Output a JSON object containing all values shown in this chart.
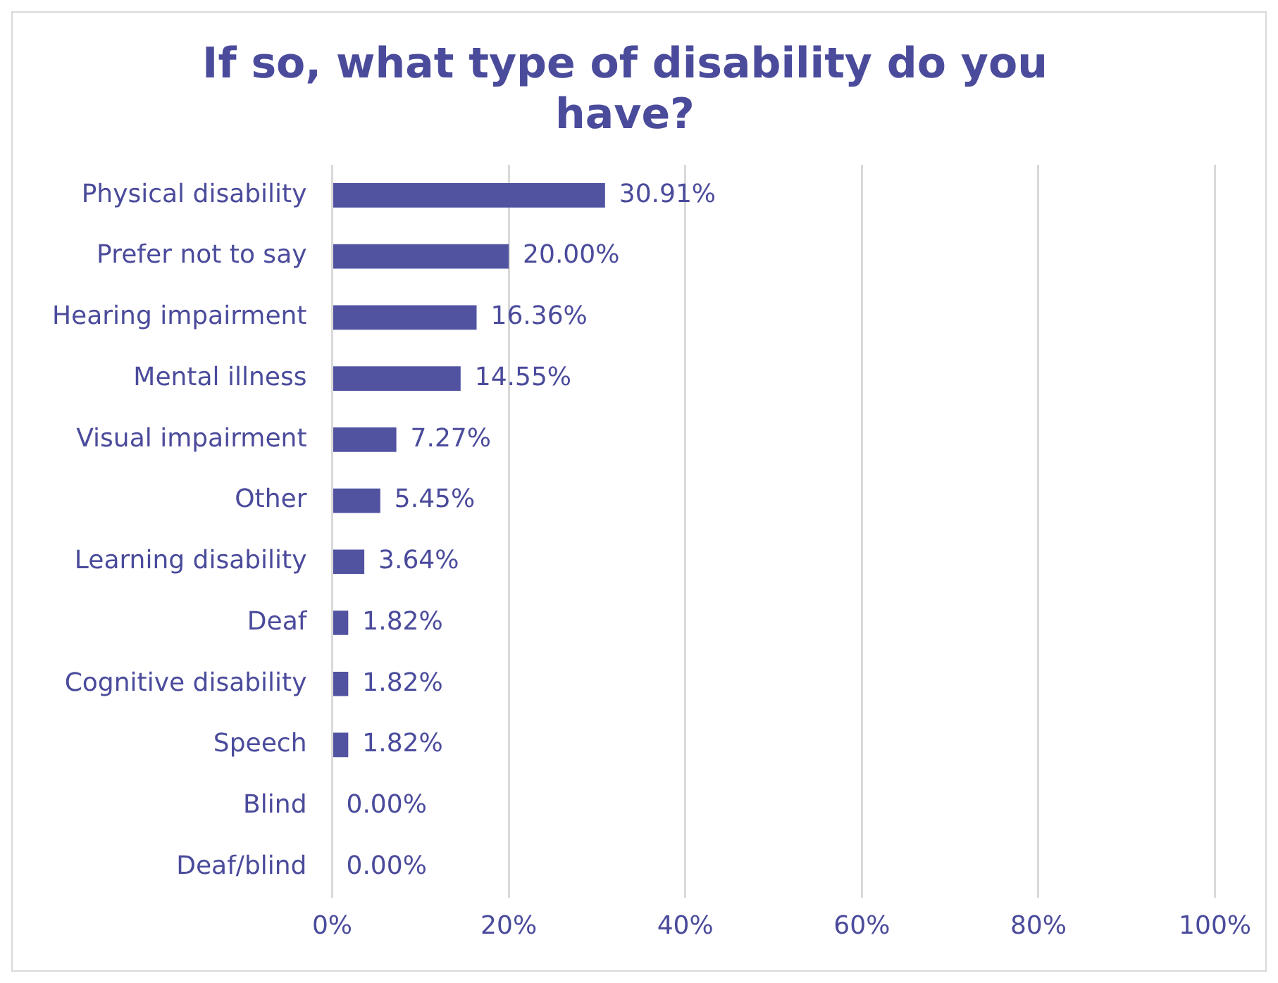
{
  "chart_data": {
    "type": "bar",
    "orientation": "horizontal",
    "title": "If so, what type of disability do you have?",
    "categories": [
      "Physical disability",
      "Prefer not to say",
      "Hearing impairment",
      "Mental illness",
      "Visual impairment",
      "Other",
      "Learning disability",
      "Deaf",
      "Cognitive disability",
      "Speech",
      "Blind",
      "Deaf/blind"
    ],
    "values": [
      30.91,
      20.0,
      16.36,
      14.55,
      7.27,
      5.45,
      3.64,
      1.82,
      1.82,
      1.82,
      0.0,
      0.0
    ],
    "value_labels": [
      "30.91%",
      "20.00%",
      "16.36%",
      "14.55%",
      "7.27%",
      "5.45%",
      "3.64%",
      "1.82%",
      "1.82%",
      "1.82%",
      "0.00%",
      "0.00%"
    ],
    "color": "#5153a1",
    "xlim": [
      0,
      100
    ],
    "xticks": [
      {
        "value": 0,
        "label": "0%"
      },
      {
        "value": 20,
        "label": "20%"
      },
      {
        "value": 40,
        "label": "40%"
      },
      {
        "value": 60,
        "label": "60%"
      },
      {
        "value": 80,
        "label": "80%"
      },
      {
        "value": 100,
        "label": "100%"
      }
    ],
    "grid": "x",
    "legend": false
  }
}
